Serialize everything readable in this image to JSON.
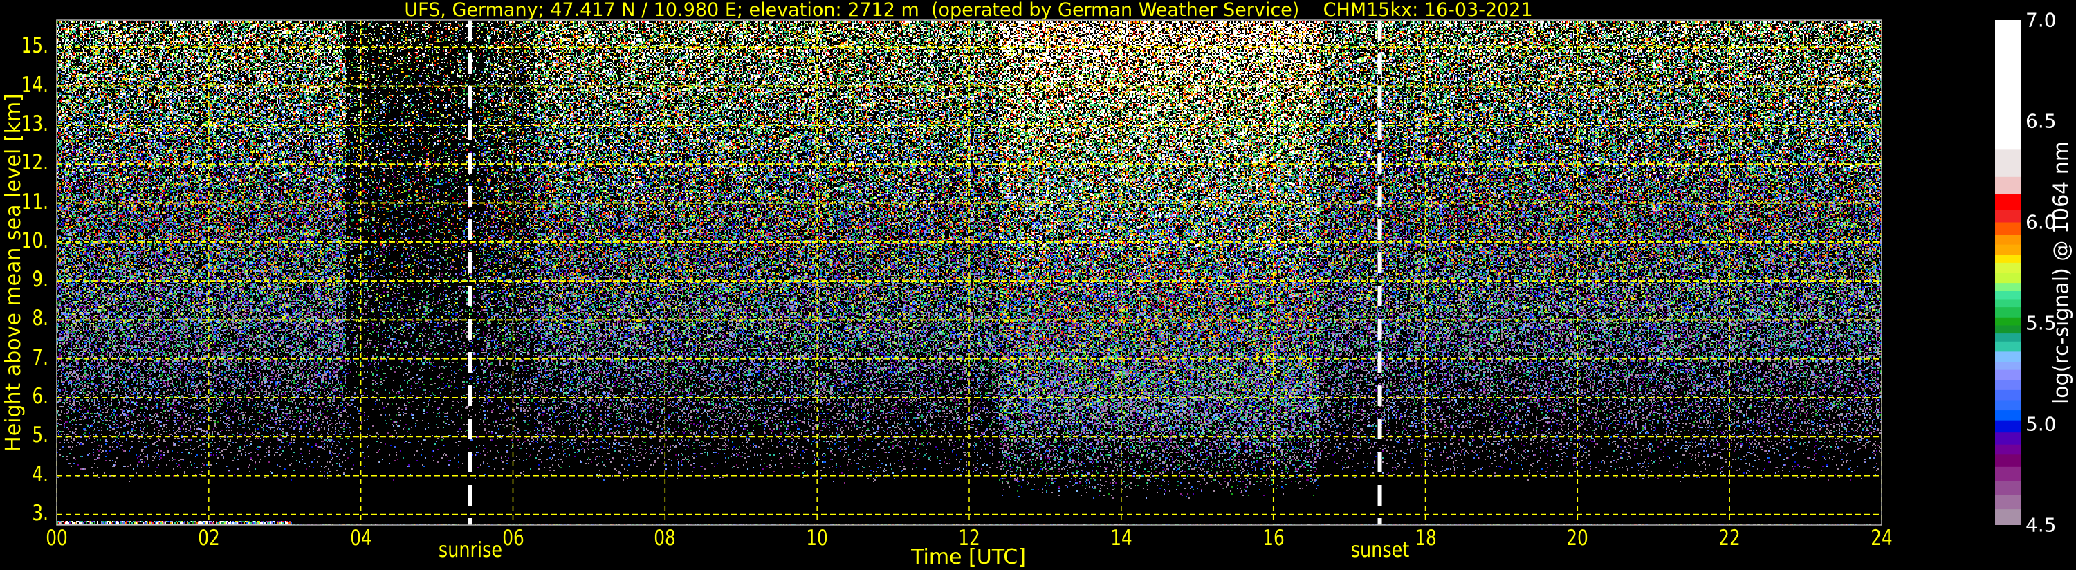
{
  "chart_data": {
    "type": "heatmap",
    "title": "UFS, Germany; 47.417 N / 10.980 E; elevation: 2712 m  (operated by German Weather Service)    CHM15kx: 16-03-2021",
    "xlabel": "Time [UTC]",
    "ylabel": "Height above mean sea level [km]",
    "xlim": [
      0,
      24
    ],
    "ylim": [
      2.73,
      15.7
    ],
    "x_ticks": [
      0,
      2,
      4,
      6,
      8,
      10,
      12,
      14,
      16,
      18,
      20,
      22,
      24
    ],
    "x_tick_labels": [
      "00",
      "02",
      "04",
      "06",
      "08",
      "10",
      "12",
      "14",
      "16",
      "18",
      "20",
      "22",
      "24"
    ],
    "y_ticks": [
      3,
      4,
      5,
      6,
      7,
      8,
      9,
      10,
      11,
      12,
      13,
      14,
      15
    ],
    "y_tick_labels": [
      "3.",
      "4.",
      "5.",
      "6.",
      "7.",
      "8.",
      "9.",
      "10.",
      "11.",
      "12.",
      "13.",
      "14.",
      "15."
    ],
    "grid": true,
    "grid_color": "#ffff00",
    "annotations": [
      {
        "label": "sunrise",
        "x": 5.44
      },
      {
        "label": "sunset",
        "x": 17.4
      }
    ],
    "colorbar": {
      "label": "log(rc-signal) @ 1064 nm",
      "range": [
        4.5,
        7.0
      ],
      "ticks": [
        "4.5",
        "5.0",
        "5.5",
        "6.0",
        "6.5",
        "7.0"
      ],
      "tick_values": [
        4.5,
        5.0,
        5.5,
        6.0,
        6.5,
        7.0
      ],
      "bounds": [
        4.5,
        4.58,
        4.65,
        4.72,
        4.79,
        4.85,
        4.9,
        4.96,
        5.02,
        5.07,
        5.12,
        5.17,
        5.22,
        5.27,
        5.31,
        5.36,
        5.41,
        5.45,
        5.49,
        5.53,
        5.58,
        5.62,
        5.66,
        5.7,
        5.75,
        5.8,
        5.84,
        5.89,
        5.94,
        6.0,
        6.06,
        6.14,
        6.225,
        6.36,
        7.0
      ],
      "colors": [
        "#a890a8",
        "#a070a0",
        "#944c94",
        "#8c2888",
        "#780070",
        "#700098",
        "#5000b8",
        "#0010e0",
        "#0060ff",
        "#3070ff",
        "#4870ff",
        "#6c80ff",
        "#8c90ff",
        "#8caaff",
        "#80c0ff",
        "#30c8a8",
        "#1ca890",
        "#14962e",
        "#18a818",
        "#20c050",
        "#30d47a",
        "#40e49c",
        "#80f880",
        "#c8fa3c",
        "#dcf93c",
        "#ffe600",
        "#ffab00",
        "#ff9800",
        "#ff5a00",
        "#f22424",
        "#ff0000",
        "#f0c4c4",
        "#ece4e4",
        "#ffffff"
      ]
    }
  }
}
